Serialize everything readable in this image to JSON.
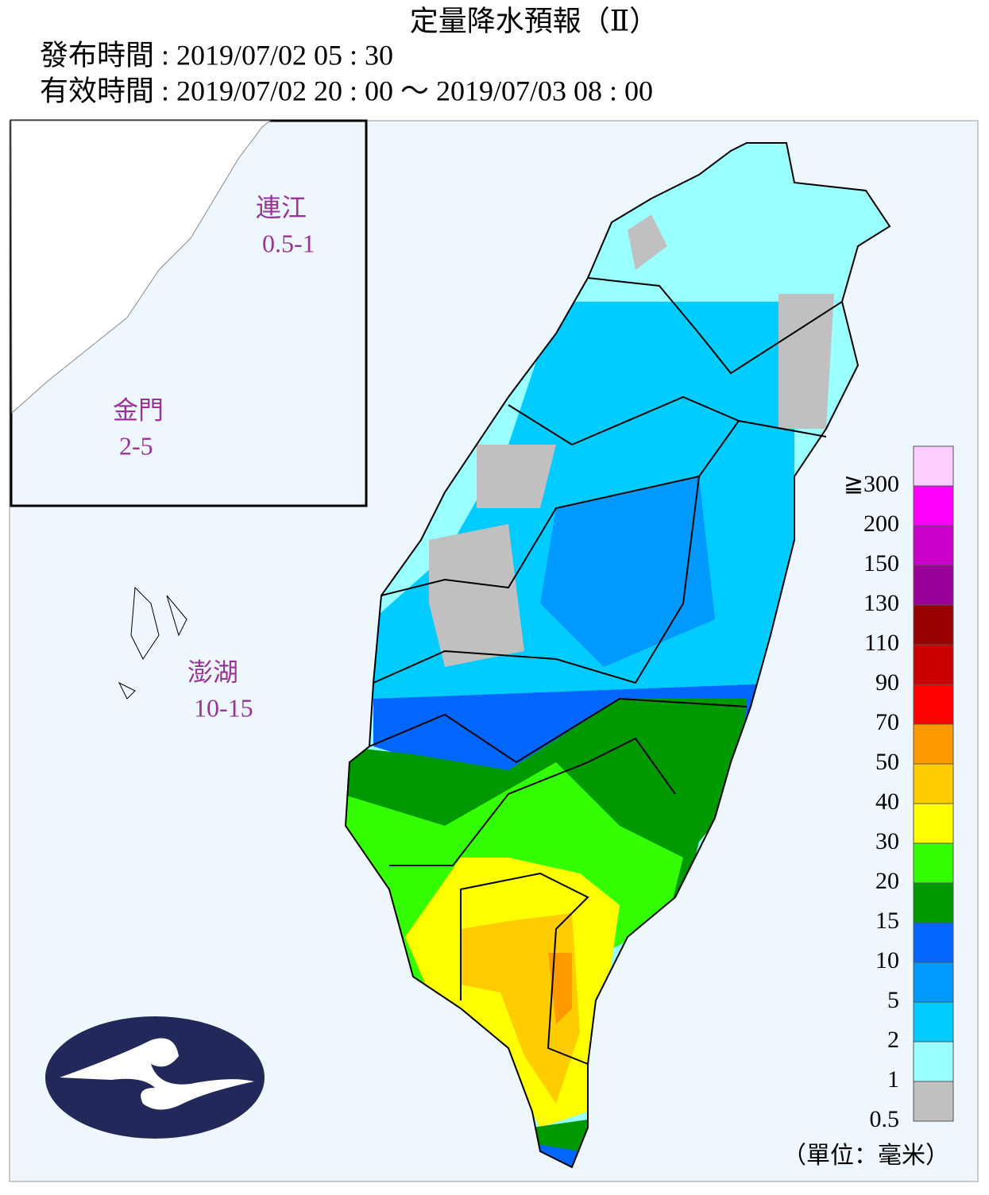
{
  "header": {
    "title": "定量降水預報（Ⅱ）",
    "issued": "發布時間 : 2019/07/02 05 : 30",
    "valid": "有效時間 : 2019/07/02 20 : 00 ～ 2019/07/03 08 : 00"
  },
  "regions": [
    {
      "name": "連江",
      "amount": "0.5-1"
    },
    {
      "name": "金門",
      "amount": "2-5"
    },
    {
      "name": "澎湖",
      "amount": "10-15"
    }
  ],
  "legend": {
    "items": [
      {
        "color": "#ffccff",
        "label": "≧300"
      },
      {
        "color": "#ff00ff",
        "label": "200"
      },
      {
        "color": "#cc00cc",
        "label": "150"
      },
      {
        "color": "#990099",
        "label": "130"
      },
      {
        "color": "#990000",
        "label": "110"
      },
      {
        "color": "#cc0000",
        "label": "90"
      },
      {
        "color": "#ff0000",
        "label": "70"
      },
      {
        "color": "#ff9900",
        "label": "50"
      },
      {
        "color": "#ffcc00",
        "label": "40"
      },
      {
        "color": "#ffff00",
        "label": "30"
      },
      {
        "color": "#33ff00",
        "label": "20"
      },
      {
        "color": "#009900",
        "label": "15"
      },
      {
        "color": "#0066ff",
        "label": "10"
      },
      {
        "color": "#0099ff",
        "label": "5"
      },
      {
        "color": "#00ccff",
        "label": "2"
      },
      {
        "color": "#99ffff",
        "label": "1"
      },
      {
        "color": "#c0c0c0",
        "label": "0.5"
      }
    ],
    "unit": "（單位：毫米）"
  }
}
